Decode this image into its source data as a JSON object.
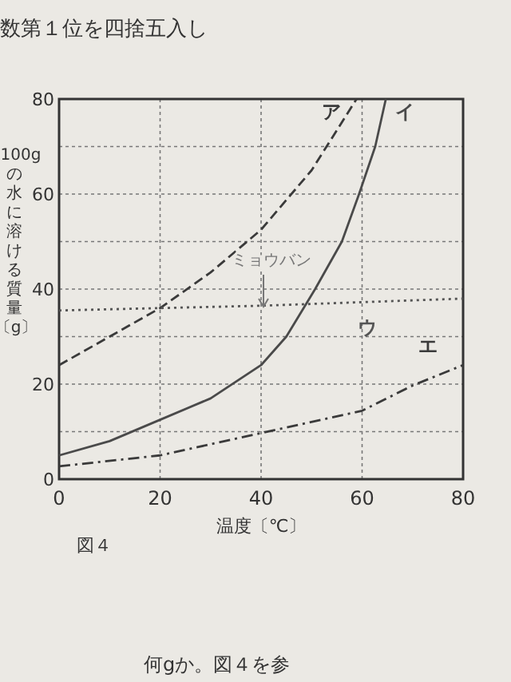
{
  "chart_data": {
    "type": "line",
    "xlabel": "温度〔℃〕",
    "ylabel": "100gの水に溶ける質量〔g〕",
    "xlim": [
      0,
      80
    ],
    "ylim": [
      0,
      80
    ],
    "xticks": [
      0,
      20,
      40,
      60,
      80
    ],
    "yticks": [
      0,
      20,
      40,
      60,
      80
    ],
    "grid": true,
    "series": [
      {
        "name": "ア",
        "color": "#3a3a3a",
        "line_style": "dashed",
        "x": [
          0,
          10,
          20,
          30,
          40,
          50,
          58.9
        ],
        "values": [
          24,
          30,
          36,
          43.5,
          52.5,
          65,
          80
        ]
      },
      {
        "name": "イ",
        "color": "#4a4a4a",
        "line_style": "solid",
        "x": [
          0,
          10,
          20,
          30,
          40,
          45,
          50.7,
          56,
          59.4,
          62.6,
          64.7
        ],
        "values": [
          5,
          8,
          12.5,
          17,
          24,
          30,
          40,
          50,
          60,
          70,
          80
        ]
      },
      {
        "name": "ウ",
        "color": "#555555",
        "line_style": "dotted",
        "x": [
          0,
          40,
          80
        ],
        "values": [
          35.5,
          36.5,
          38
        ]
      },
      {
        "name": "エ",
        "color": "#3a3a3a",
        "line_style": "dashdot",
        "x": [
          0,
          20,
          40,
          60,
          70,
          80
        ],
        "values": [
          2.7,
          5,
          9.7,
          14.4,
          19.7,
          24
        ]
      }
    ],
    "annotations": [
      "ミョウバン",
      "数第１位を四捨五入し",
      "図４",
      "何gか。図４を参"
    ]
  }
}
